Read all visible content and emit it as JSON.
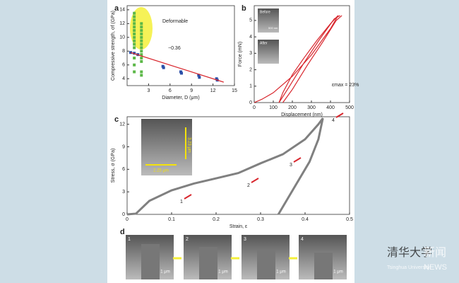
{
  "chart_data": [
    {
      "type": "scatter",
      "panel": "a",
      "x_label": "Diameter, D (μm)",
      "y_label": "Compressive strength, σf (GPa)",
      "xlim": [
        0,
        15
      ],
      "ylim": [
        3,
        14.6
      ],
      "xticks": [
        3,
        6,
        9,
        12,
        15
      ],
      "yticks": [
        4,
        6,
        8,
        10,
        12,
        14
      ],
      "series": [
        {
          "color": "#5cb848",
          "x": [
            1,
            1,
            1,
            1,
            1,
            1,
            1,
            1,
            1,
            1,
            1,
            1,
            1,
            1,
            2,
            2,
            2,
            2,
            2,
            2,
            2,
            2,
            2,
            2,
            2,
            2,
            2,
            2
          ],
          "values": [
            13.5,
            13,
            12.5,
            12,
            11.5,
            11,
            10.5,
            10,
            9.5,
            9,
            8.5,
            7,
            6,
            5,
            12,
            11.5,
            11,
            10.5,
            10,
            9.5,
            9,
            8.5,
            8,
            7.5,
            7,
            6.5,
            5,
            4.5
          ]
        },
        {
          "color": "#2b4fa8",
          "x": [
            0.5,
            1,
            1.5,
            5,
            5.1,
            7.5,
            7.6,
            10,
            10.1,
            12.5,
            12.6
          ],
          "values": [
            7.8,
            7.7,
            7.5,
            5.8,
            5.6,
            5,
            4.8,
            4.5,
            4.2,
            4,
            3.8
          ]
        }
      ],
      "fit": {
        "color": "#d8262d",
        "x": [
          0.5,
          13.5
        ],
        "values": [
          7.8,
          3.5
        ]
      },
      "annotations": [
        "Deformable",
        "−0.36"
      ]
    },
    {
      "type": "line",
      "panel": "b",
      "x_label": "Displacement (nm)",
      "y_label": "Force (mN)",
      "xlim": [
        0,
        500
      ],
      "ylim": [
        0,
        5.9
      ],
      "xticks": [
        0,
        100,
        200,
        300,
        400,
        500
      ],
      "yticks": [
        0,
        1,
        2,
        3,
        4,
        5
      ],
      "series": [
        {
          "color": "#d8262d",
          "x": [
            0,
            40,
            100,
            200,
            300,
            400,
            440
          ],
          "values": [
            0,
            0.2,
            0.6,
            1.6,
            2.9,
            4.5,
            5.3
          ]
        },
        {
          "color": "#d8262d",
          "x": [
            440,
            400,
            330,
            260,
            200,
            150,
            130
          ],
          "values": [
            5.3,
            4.8,
            3.8,
            2.7,
            1.7,
            0.6,
            0
          ]
        },
        {
          "color": "#d8262d",
          "x": [
            130,
            180,
            260,
            340,
            420,
            450
          ],
          "values": [
            0,
            0.9,
            2.4,
            3.8,
            5.1,
            5.3
          ]
        },
        {
          "color": "#d8262d",
          "x": [
            150,
            200,
            280,
            360,
            430,
            460
          ],
          "values": [
            0,
            0.8,
            2.3,
            3.7,
            5,
            5.3
          ]
        }
      ],
      "annotations": [
        "εmax = 23%"
      ],
      "insets": [
        "Before",
        "After"
      ],
      "scale_bar": "500 nm"
    },
    {
      "type": "line",
      "panel": "c",
      "x_label": "Strain, ε",
      "y_label": "Stress, σ (GPa)",
      "xlim": [
        0,
        0.5
      ],
      "ylim": [
        0,
        13
      ],
      "xticks": [
        0,
        0.1,
        0.2,
        0.3,
        0.4,
        0.5
      ],
      "yticks": [
        0,
        3,
        6,
        9,
        12
      ],
      "series": [
        {
          "color": "#808080",
          "x": [
            0,
            0.02,
            0.05,
            0.1,
            0.15,
            0.2,
            0.25,
            0.3,
            0.35,
            0.4,
            0.43,
            0.44,
            0.43,
            0.41,
            0.38,
            0.36,
            0.34
          ],
          "values": [
            0,
            0.1,
            1.8,
            3.2,
            4.1,
            4.8,
            5.5,
            6.8,
            8,
            10,
            12,
            12.8,
            10,
            7,
            4,
            2,
            0
          ]
        }
      ],
      "annotations": [
        "1",
        "2",
        "3",
        "4"
      ],
      "dimensions": [
        "3.23 μm",
        "2.25 μm"
      ]
    }
  ],
  "micrographs": {
    "panel": "d",
    "frames": [
      {
        "label": "1",
        "scale": "1 μm"
      },
      {
        "label": "2",
        "scale": "1 μm"
      },
      {
        "label": "3",
        "scale": "1 μm"
      },
      {
        "label": "4",
        "scale": "1 μm"
      }
    ]
  },
  "watermark": {
    "logo_text": "清华大学",
    "subtitle": "Tsinghua University",
    "news_cn": "新闻",
    "news_en": "NEWS"
  }
}
